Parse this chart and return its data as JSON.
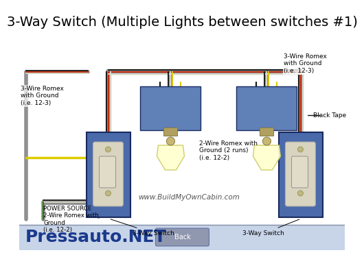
{
  "title": "3-Way Switch (Multiple Lights between switches #1)",
  "title_fontsize": 14,
  "watermark": "www.BuildMyOwnCabin.com",
  "brand": "Pressauto.NET",
  "brand_color": "#1a3a8c",
  "brand_fontsize": 18,
  "bg_color": "#ffffff",
  "back_button": "Back",
  "bottom_bar_color": "#c8d4e8",
  "separator_color": "#8090a8",
  "labels": {
    "left_romex": "3-Wire Romex\nwith Ground\n(i.e. 12-3)",
    "left_switch": "3-Way Switch",
    "power_source": "POWER SOURCE\n2-Wire Romex with\nGround\n(i.e. 12-2)",
    "mid_romex": "2-Wire Romex with\nGround (2 runs)\n(i.e. 12-2)",
    "right_romex": "3-Wire Romex\nwith Ground\n(i.e. 12-3)",
    "right_switch": "3-Way Switch",
    "black_tape": "Black Tape"
  },
  "wire_gray": "#909090",
  "wire_black": "#111111",
  "wire_red": "#cc2200",
  "wire_white": "#ddddcc",
  "wire_yellow": "#ddcc00",
  "wire_green": "#228800",
  "box_blue": "#4a6aaa",
  "box_dark": "#1a2a60",
  "switch_bg": "#d8d4c0",
  "light_box_blue": "#6080b8",
  "bulb_color": "#ffffd0",
  "bulb_edge": "#cccc66",
  "socket_color": "#c8b870",
  "base_color": "#b0a060"
}
